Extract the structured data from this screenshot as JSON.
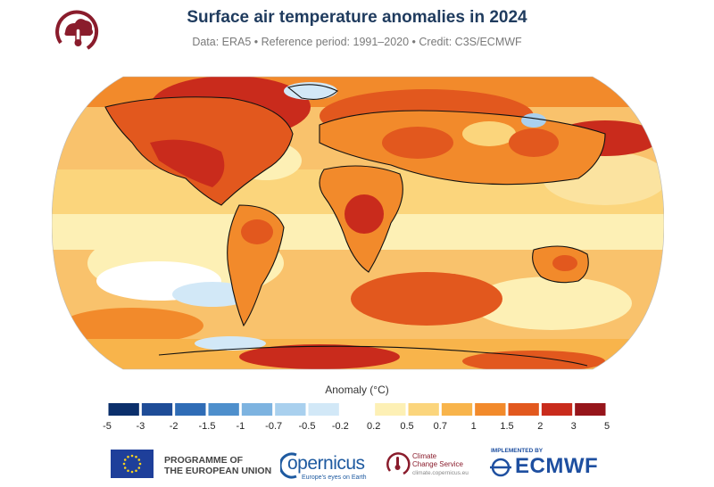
{
  "header": {
    "title": "Surface air temperature anomalies in 2024",
    "subtitle": "Data: ERA5 • Reference period: 1991–2020 • Credit: C3S/ECMWF"
  },
  "map": {
    "projection": "Robinson",
    "variable": "surface-air-temperature-anomaly"
  },
  "legend": {
    "title": "Anomaly (°C)",
    "ticks": [
      "-5",
      "-3",
      "-2",
      "-1.5",
      "-1",
      "-0.7",
      "-0.5",
      "-0.2",
      "0.2",
      "0.5",
      "0.7",
      "1",
      "1.5",
      "2",
      "3",
      "5"
    ],
    "colors_negative": [
      "#0b2f6b",
      "#1e4c97",
      "#2f6cb6",
      "#4e8fcc",
      "#7db3e0",
      "#a9d0ee",
      "#d2e8f7"
    ],
    "colors_neutral": "#ffffff",
    "colors_positive": [
      "#fdf0b5",
      "#fbd57c",
      "#f8b44b",
      "#f28a2b",
      "#e2581e",
      "#c92b1c",
      "#96151b"
    ]
  },
  "footer": {
    "eu_line1": "PROGRAMME OF",
    "eu_line2": "THE EUROPEAN UNION",
    "copernicus_word": "opernicus",
    "copernicus_tagline": "Europe's eyes on Earth",
    "ccs_line1": "Climate",
    "ccs_line2": "Change Service",
    "ccs_url": "climate.copernicus.eu",
    "implemented_by": "IMPLEMENTED BY",
    "ecmwf": "ECMWF"
  }
}
